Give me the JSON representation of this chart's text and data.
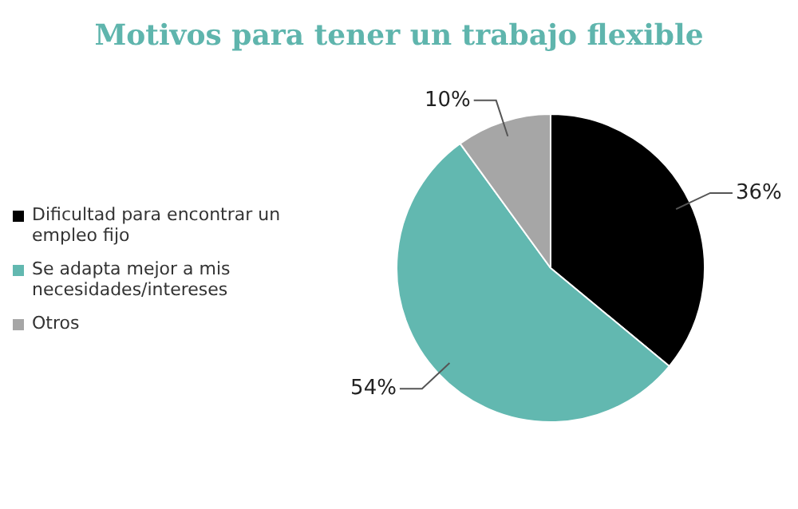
{
  "chart_data": {
    "type": "pie",
    "title": "Motivos para tener un trabajo flexible",
    "categories": [
      "Dificultad para encontrar un empleo fijo",
      "Se adapta mejor a mis necesidades/intereses",
      "Otros"
    ],
    "values": [
      36,
      54,
      10
    ],
    "value_labels": [
      "36%",
      "54%",
      "10%"
    ],
    "colors": [
      "#000000",
      "#62b8b0",
      "#a6a6a6"
    ],
    "legend": "left"
  }
}
